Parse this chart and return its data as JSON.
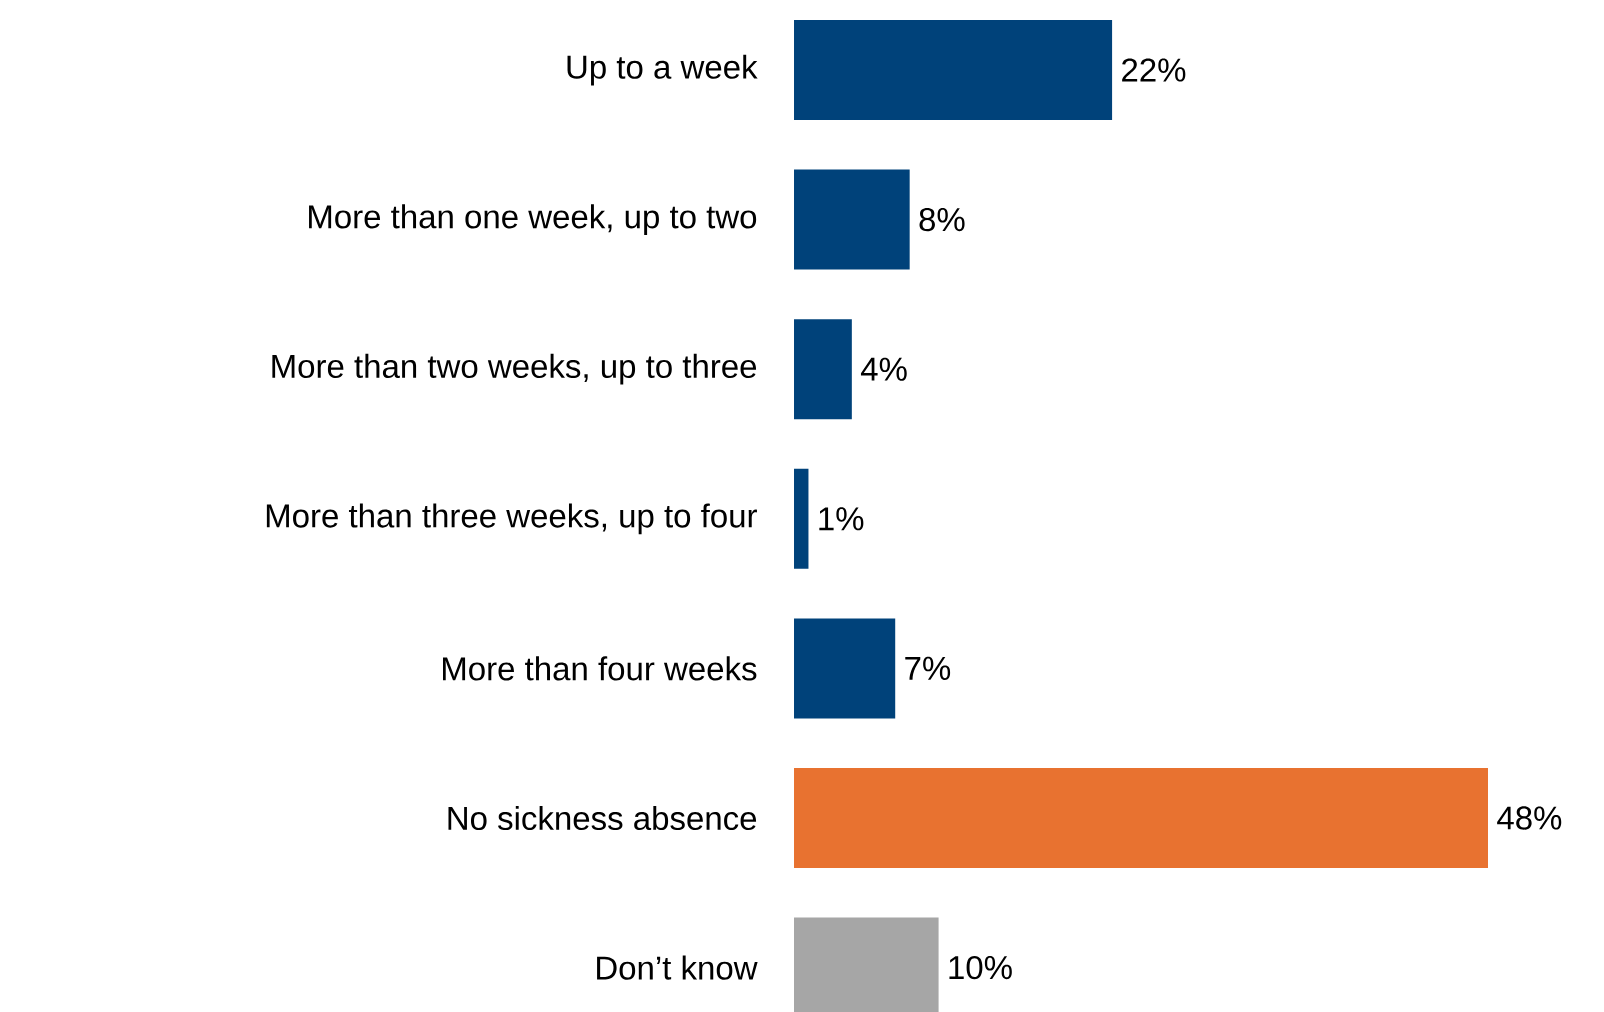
{
  "chart_data": {
    "type": "bar",
    "orientation": "horizontal",
    "categories": [
      "Up to a week",
      "More than one week, up to two",
      "More than two weeks, up to three",
      "More than three weeks, up to four",
      "More than four weeks",
      "No sickness absence",
      "Don’t know"
    ],
    "values": [
      22,
      8,
      4,
      1,
      7,
      48,
      10
    ],
    "colors": [
      "#00427a",
      "#00427a",
      "#00427a",
      "#00427a",
      "#00427a",
      "#e87230",
      "#a6a6a6"
    ],
    "value_labels": [
      "22%",
      "8%",
      "4%",
      "1%",
      "7%",
      "48%",
      "10%"
    ]
  }
}
